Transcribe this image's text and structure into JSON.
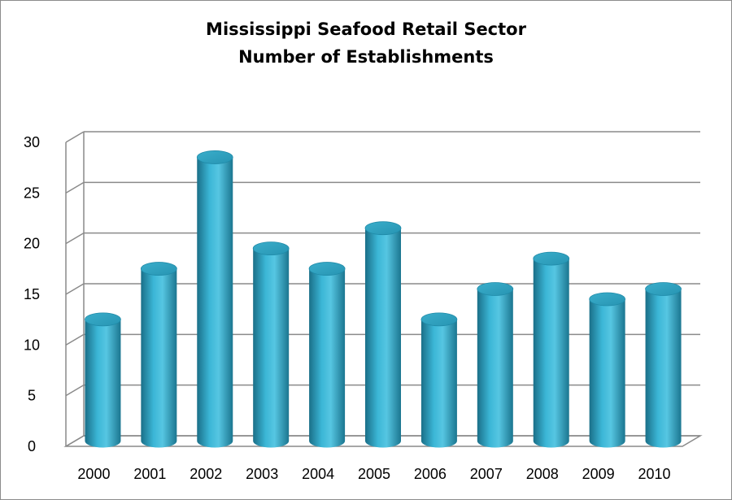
{
  "chart_data": {
    "type": "bar",
    "title_lines": [
      "Mississippi Seafood Retail Sector",
      "Number of Establishments"
    ],
    "categories": [
      "2000",
      "2001",
      "2002",
      "2003",
      "2004",
      "2005",
      "2006",
      "2007",
      "2008",
      "2009",
      "2010"
    ],
    "values": [
      12,
      17,
      28,
      19,
      17,
      21,
      12,
      15,
      18,
      14,
      15
    ],
    "ylim": [
      0,
      30
    ],
    "yticks": [
      0,
      5,
      10,
      15,
      20,
      25,
      30
    ],
    "xlabel": "",
    "ylabel": "",
    "grid": true,
    "style": "3d-cylinder",
    "bar_color": "#31a3c2"
  }
}
